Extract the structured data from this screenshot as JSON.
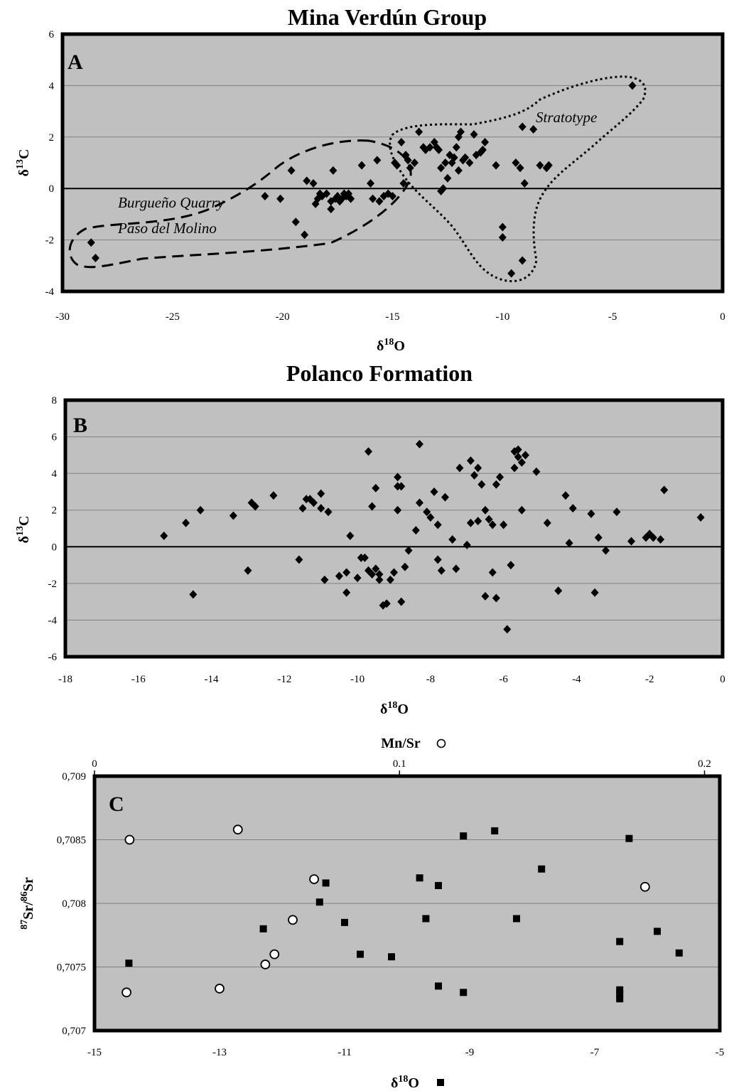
{
  "colors": {
    "plot_bg": "#c0c0c0",
    "frame": "#000000",
    "grid": "#808080",
    "marker": "#000000",
    "open_marker_fill": "#ffffff"
  },
  "chart_data": [
    {
      "type": "scatter",
      "panel": "A",
      "title": "Mina Verdún Group",
      "xlabel": "δ18O",
      "ylabel": "δ13C",
      "xlim": [
        -30,
        0
      ],
      "ylim": [
        -4,
        6
      ],
      "x_ticks": [
        "-30",
        "-25",
        "-20",
        "-15",
        "-10",
        "-5",
        "0"
      ],
      "y_ticks": [
        "-4",
        "-2",
        "0",
        "2",
        "4",
        "6"
      ],
      "grid": true,
      "marker": "diamond",
      "annotations": [
        "Stratotype",
        "Burgueño Quarry",
        "Paso del Molino"
      ],
      "series": [
        {
          "points": [
            [
              -28.7,
              -2.1
            ],
            [
              -28.5,
              -2.7
            ],
            [
              -20.8,
              -0.3
            ],
            [
              -20.1,
              -0.4
            ],
            [
              -19.6,
              0.7
            ],
            [
              -19.4,
              -1.3
            ],
            [
              -19.0,
              -1.8
            ],
            [
              -18.9,
              0.3
            ],
            [
              -18.6,
              0.2
            ],
            [
              -18.5,
              -0.6
            ],
            [
              -18.4,
              -0.4
            ],
            [
              -18.3,
              -0.2
            ],
            [
              -18.2,
              -0.3
            ],
            [
              -18.0,
              -0.2
            ],
            [
              -17.8,
              -0.5
            ],
            [
              -17.8,
              -0.8
            ],
            [
              -17.7,
              0.7
            ],
            [
              -17.6,
              -0.4
            ],
            [
              -17.5,
              -0.3
            ],
            [
              -17.4,
              -0.5
            ],
            [
              -17.3,
              -0.4
            ],
            [
              -17.2,
              -0.2
            ],
            [
              -17.1,
              -0.3
            ],
            [
              -17.0,
              -0.2
            ],
            [
              -16.9,
              -0.4
            ],
            [
              -16.4,
              0.9
            ],
            [
              -16.0,
              0.2
            ],
            [
              -15.9,
              -0.4
            ],
            [
              -15.7,
              1.1
            ],
            [
              -15.6,
              -0.5
            ],
            [
              -15.4,
              -0.3
            ],
            [
              -15.2,
              -0.2
            ],
            [
              -15.0,
              -0.3
            ],
            [
              -14.9,
              1.0
            ],
            [
              -14.8,
              0.9
            ],
            [
              -14.6,
              1.8
            ],
            [
              -14.5,
              0.2
            ],
            [
              -14.4,
              1.3
            ],
            [
              -14.3,
              1.1
            ],
            [
              -14.2,
              0.8
            ],
            [
              -14.0,
              1.0
            ],
            [
              -13.8,
              2.2
            ],
            [
              -13.6,
              1.6
            ],
            [
              -13.5,
              1.5
            ],
            [
              -13.3,
              1.6
            ],
            [
              -13.1,
              1.8
            ],
            [
              -13.0,
              1.6
            ],
            [
              -12.9,
              1.5
            ],
            [
              -12.8,
              0.8
            ],
            [
              -12.8,
              -0.1
            ],
            [
              -12.7,
              0.0
            ],
            [
              -12.6,
              1.0
            ],
            [
              -12.5,
              0.4
            ],
            [
              -12.4,
              1.3
            ],
            [
              -12.3,
              1.0
            ],
            [
              -12.2,
              1.2
            ],
            [
              -12.1,
              1.6
            ],
            [
              -12.0,
              2.0
            ],
            [
              -12.0,
              0.7
            ],
            [
              -11.9,
              2.2
            ],
            [
              -11.8,
              1.1
            ],
            [
              -11.7,
              1.2
            ],
            [
              -11.5,
              1.0
            ],
            [
              -11.3,
              2.1
            ],
            [
              -11.2,
              1.3
            ],
            [
              -11.0,
              1.4
            ],
            [
              -10.9,
              1.5
            ],
            [
              -10.8,
              1.8
            ],
            [
              -10.3,
              0.9
            ],
            [
              -10.0,
              -1.5
            ],
            [
              -10.0,
              -1.9
            ],
            [
              -9.6,
              -3.3
            ],
            [
              -9.4,
              1.0
            ],
            [
              -9.2,
              0.8
            ],
            [
              -9.1,
              2.4
            ],
            [
              -9.0,
              0.2
            ],
            [
              -9.1,
              -2.8
            ],
            [
              -8.6,
              2.3
            ],
            [
              -8.3,
              0.9
            ],
            [
              -8.0,
              0.8
            ],
            [
              -7.9,
              0.9
            ],
            [
              -4.1,
              4.0
            ]
          ]
        }
      ]
    },
    {
      "type": "scatter",
      "panel": "B",
      "title": "Polanco Formation",
      "xlabel": "δ18O",
      "ylabel": "δ13C",
      "xlim": [
        -18,
        0
      ],
      "ylim": [
        -6,
        8
      ],
      "x_ticks": [
        "-18",
        "-16",
        "-14",
        "-12",
        "-10",
        "-8",
        "-6",
        "-4",
        "-2",
        "0"
      ],
      "y_ticks": [
        "-6",
        "-4",
        "-2",
        "0",
        "2",
        "4",
        "6",
        "8"
      ],
      "grid": true,
      "marker": "diamond",
      "series": [
        {
          "points": [
            [
              -15.3,
              0.6
            ],
            [
              -14.7,
              1.3
            ],
            [
              -14.5,
              -2.6
            ],
            [
              -14.3,
              2.0
            ],
            [
              -13.4,
              1.7
            ],
            [
              -13.0,
              -1.3
            ],
            [
              -12.9,
              2.4
            ],
            [
              -12.8,
              2.2
            ],
            [
              -12.3,
              2.8
            ],
            [
              -11.6,
              -0.7
            ],
            [
              -11.5,
              2.1
            ],
            [
              -11.4,
              2.6
            ],
            [
              -11.3,
              2.6
            ],
            [
              -11.2,
              2.4
            ],
            [
              -11.0,
              2.9
            ],
            [
              -11.0,
              2.1
            ],
            [
              -10.9,
              -1.8
            ],
            [
              -10.8,
              1.9
            ],
            [
              -10.5,
              -1.6
            ],
            [
              -10.3,
              -1.4
            ],
            [
              -10.3,
              -2.5
            ],
            [
              -10.2,
              0.6
            ],
            [
              -10.0,
              -1.7
            ],
            [
              -9.9,
              -0.6
            ],
            [
              -9.8,
              -0.6
            ],
            [
              -9.7,
              -1.3
            ],
            [
              -9.7,
              5.2
            ],
            [
              -9.6,
              -1.5
            ],
            [
              -9.6,
              2.2
            ],
            [
              -9.5,
              -1.2
            ],
            [
              -9.5,
              3.2
            ],
            [
              -9.4,
              -1.5
            ],
            [
              -9.4,
              -1.8
            ],
            [
              -9.3,
              -3.2
            ],
            [
              -9.2,
              -3.1
            ],
            [
              -9.1,
              -1.8
            ],
            [
              -9.0,
              -1.4
            ],
            [
              -8.9,
              2.0
            ],
            [
              -8.9,
              3.3
            ],
            [
              -8.9,
              3.8
            ],
            [
              -8.8,
              3.3
            ],
            [
              -8.8,
              -3.0
            ],
            [
              -8.7,
              -1.1
            ],
            [
              -8.6,
              -0.2
            ],
            [
              -8.4,
              0.9
            ],
            [
              -8.3,
              2.4
            ],
            [
              -8.3,
              5.6
            ],
            [
              -8.1,
              1.9
            ],
            [
              -8.0,
              1.6
            ],
            [
              -7.9,
              3.0
            ],
            [
              -7.8,
              1.2
            ],
            [
              -7.8,
              -0.7
            ],
            [
              -7.7,
              -1.3
            ],
            [
              -7.6,
              2.7
            ],
            [
              -7.4,
              0.4
            ],
            [
              -7.3,
              -1.2
            ],
            [
              -7.2,
              4.3
            ],
            [
              -7.0,
              0.1
            ],
            [
              -6.9,
              4.7
            ],
            [
              -6.9,
              1.3
            ],
            [
              -6.8,
              3.9
            ],
            [
              -6.7,
              1.4
            ],
            [
              -6.7,
              4.3
            ],
            [
              -6.6,
              3.4
            ],
            [
              -6.5,
              -2.7
            ],
            [
              -6.5,
              2.0
            ],
            [
              -6.4,
              1.5
            ],
            [
              -6.3,
              1.2
            ],
            [
              -6.3,
              -1.4
            ],
            [
              -6.2,
              3.4
            ],
            [
              -6.2,
              -2.8
            ],
            [
              -6.1,
              3.8
            ],
            [
              -6.0,
              1.2
            ],
            [
              -5.9,
              -4.5
            ],
            [
              -5.8,
              -1.0
            ],
            [
              -5.7,
              5.2
            ],
            [
              -5.7,
              4.3
            ],
            [
              -5.6,
              4.9
            ],
            [
              -5.6,
              5.3
            ],
            [
              -5.5,
              4.6
            ],
            [
              -5.5,
              2.0
            ],
            [
              -5.4,
              5.0
            ],
            [
              -5.1,
              4.1
            ],
            [
              -4.8,
              1.3
            ],
            [
              -4.5,
              -2.4
            ],
            [
              -4.3,
              2.8
            ],
            [
              -4.2,
              0.2
            ],
            [
              -4.1,
              2.1
            ],
            [
              -3.6,
              1.8
            ],
            [
              -3.5,
              -2.5
            ],
            [
              -3.4,
              0.5
            ],
            [
              -3.2,
              -0.2
            ],
            [
              -2.9,
              1.9
            ],
            [
              -2.5,
              0.3
            ],
            [
              -2.1,
              0.5
            ],
            [
              -2.0,
              0.7
            ],
            [
              -1.9,
              0.5
            ],
            [
              -1.7,
              0.4
            ],
            [
              -1.6,
              3.1
            ],
            [
              -0.6,
              1.6
            ]
          ]
        }
      ]
    },
    {
      "type": "scatter",
      "panel": "C",
      "title": "",
      "xlabel": "δ18O",
      "x2label": "Mn/Sr",
      "ylabel": "87Sr/86Sr",
      "xlim": [
        -15,
        -5
      ],
      "x2lim": [
        0,
        0.205
      ],
      "ylim": [
        0.707,
        0.709
      ],
      "x_ticks": [
        "-15",
        "-13",
        "-11",
        "-9",
        "-7",
        "-5"
      ],
      "x2_ticks": [
        "0",
        "0.1",
        "0.2"
      ],
      "y_ticks": [
        "0,707",
        "0,7075",
        "0,708",
        "0,7085",
        "0,709"
      ],
      "grid": true,
      "series": [
        {
          "marker": "filled-square",
          "axis": "bottom",
          "points": [
            [
              -14.45,
              0.70753
            ],
            [
              -12.3,
              0.7078
            ],
            [
              -11.4,
              0.70801
            ],
            [
              -11.3,
              0.70816
            ],
            [
              -11.0,
              0.70785
            ],
            [
              -10.75,
              0.7076
            ],
            [
              -10.25,
              0.70758
            ],
            [
              -9.8,
              0.7082
            ],
            [
              -9.7,
              0.70788
            ],
            [
              -9.5,
              0.70735
            ],
            [
              -9.5,
              0.70814
            ],
            [
              -9.1,
              0.7073
            ],
            [
              -9.1,
              0.70853
            ],
            [
              -8.6,
              0.70857
            ],
            [
              -8.25,
              0.70788
            ],
            [
              -7.85,
              0.70827
            ],
            [
              -6.6,
              0.7077
            ],
            [
              -6.6,
              0.70732
            ],
            [
              -6.6,
              0.70729
            ],
            [
              -6.6,
              0.70725
            ],
            [
              -6.45,
              0.70851
            ],
            [
              -6.0,
              0.70778
            ],
            [
              -5.65,
              0.70761
            ]
          ]
        },
        {
          "marker": "open-circle",
          "axis": "top",
          "points": [
            [
              0.0105,
              0.7073
            ],
            [
              0.0115,
              0.7085
            ],
            [
              0.041,
              0.70733
            ],
            [
              0.047,
              0.70858
            ],
            [
              0.056,
              0.70752
            ],
            [
              0.059,
              0.7076
            ],
            [
              0.065,
              0.70787
            ],
            [
              0.072,
              0.70819
            ],
            [
              0.1805,
              0.70813
            ]
          ]
        }
      ]
    }
  ]
}
